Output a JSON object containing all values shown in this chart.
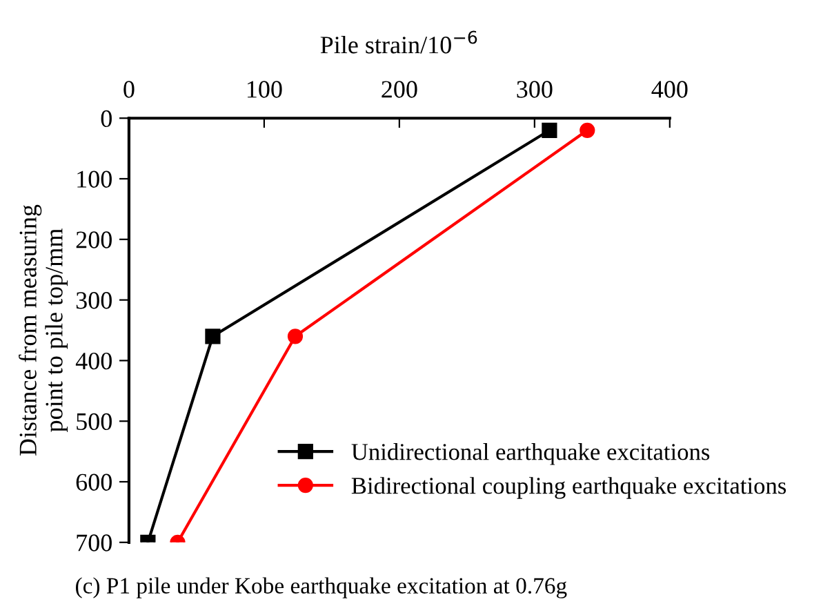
{
  "chart_data": {
    "type": "line",
    "xlabel": "Pile strain/10$^{−6}$",
    "ylabel": "Distance from measuring\npoint to pile top/mm",
    "annotations": [
      "(c) P1 pile under Kobe earthquake excitation at 0.76g"
    ],
    "xlim": [
      0,
      400
    ],
    "xticks": [
      0,
      100,
      200,
      300,
      400
    ],
    "ylim": [
      700,
      0
    ],
    "yticks": [
      0,
      100,
      200,
      300,
      400,
      500,
      600,
      700
    ],
    "grid": false,
    "legend": "bottom right",
    "series": [
      {
        "name": "Unidirectional earthquake excitations",
        "color": "#000000",
        "marker": "square",
        "x": [
          311,
          62,
          14
        ],
        "values": [
          20,
          360,
          700
        ]
      },
      {
        "name": "Bidirectional coupling earthquake excitations",
        "color": "#ff0000",
        "marker": "circle",
        "x": [
          339,
          123,
          36
        ],
        "values": [
          20,
          360,
          700
        ]
      }
    ]
  }
}
